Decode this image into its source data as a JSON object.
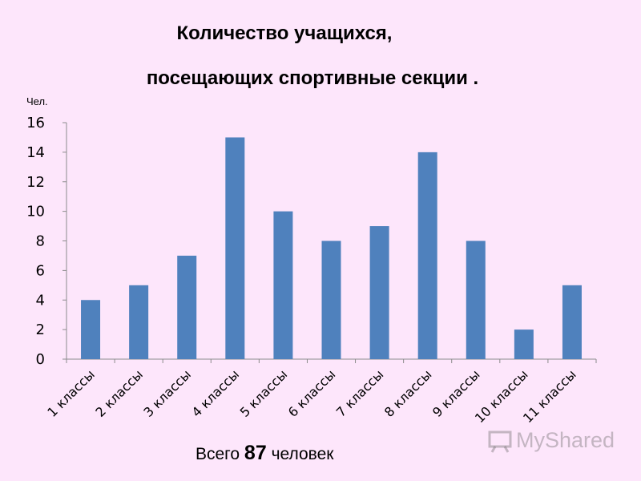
{
  "chart_data": {
    "type": "bar",
    "title": "Количество учащихся,",
    "subtitle": "посещающих спортивные секции .",
    "ylabel": "Чел.",
    "categories": [
      "1 классы",
      "2 классы",
      "3 классы",
      "4 классы",
      "5 классы",
      "6 классы",
      "7 классы",
      "8 классы",
      "9 классы",
      "10 классы",
      "11 классы"
    ],
    "values": [
      4,
      5,
      7,
      15,
      10,
      8,
      9,
      14,
      8,
      2,
      5
    ],
    "ylim": [
      0,
      16
    ],
    "yticks": [
      0,
      2,
      4,
      6,
      8,
      10,
      12,
      14,
      16
    ],
    "grid": false,
    "bar_color": "#4f81bd"
  },
  "footer": {
    "prefix": "Всего",
    "total": "87",
    "suffix": "человек"
  },
  "watermark": {
    "text": "MyShared"
  }
}
